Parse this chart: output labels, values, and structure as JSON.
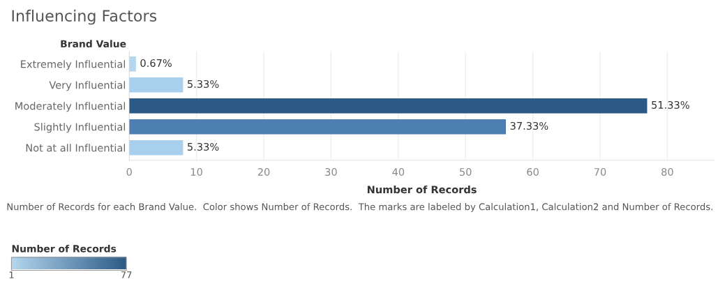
{
  "chart_data": {
    "type": "bar",
    "orientation": "horizontal",
    "title": "Influencing Factors",
    "ylabel": "Brand Value",
    "xlabel": "Number of Records",
    "categories": [
      "Extremely Influential",
      "Very Influential",
      "Moderately Influential",
      "Slightly Influential",
      "Not at all Influential"
    ],
    "values": [
      1,
      8,
      77,
      56,
      8
    ],
    "colors": [
      "#b4d6ee",
      "#a8cfeb",
      "#2b5a86",
      "#4d7fb2",
      "#a8cfeb"
    ],
    "xlim": [
      0,
      87
    ],
    "xticks": [
      0,
      10,
      20,
      30,
      40,
      50,
      60,
      70,
      80
    ],
    "grid": "x",
    "clabel": "Number of Records",
    "clim": [
      1,
      77
    ],
    "cticks": [
      1,
      77
    ],
    "annotations": [
      {
        "text": "0.67%",
        "x": 1,
        "y": "Extremely Influential"
      },
      {
        "text": "5.33%",
        "x": 8,
        "y": "Very Influential"
      },
      {
        "text": "51.33%",
        "x": 77,
        "y": "Moderately Influential"
      },
      {
        "text": "37.33%",
        "x": 56,
        "y": "Slightly Influential"
      },
      {
        "text": "5.33%",
        "x": 8,
        "y": "Not at all Influential"
      },
      "Number of Records for each Brand Value.  Color shows Number of Records.  The marks are labeled by Calculation1, Calculation2 and Number of Records."
    ]
  }
}
